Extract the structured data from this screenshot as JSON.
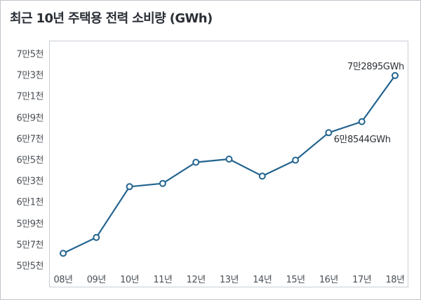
{
  "chart_data": {
    "type": "line",
    "title": "최근 10년 주택용 전력 소비량 (GWh)",
    "xlabel": "",
    "ylabel": "",
    "categories": [
      "08년",
      "09년",
      "10년",
      "11년",
      "12년",
      "13년",
      "14년",
      "15년",
      "16년",
      "17년",
      "18년"
    ],
    "series": [
      {
        "name": "주택용 전력 소비량",
        "values": [
          56100,
          57600,
          62400,
          62700,
          64700,
          65000,
          63400,
          64900,
          67500,
          68544,
          72895
        ]
      }
    ],
    "ylim": [
      55000,
      75000
    ],
    "yticks": [
      75000,
      73000,
      71000,
      69000,
      67000,
      65000,
      63000,
      61000,
      59000,
      57000,
      55000
    ],
    "ytick_labels": [
      "7만5천",
      "7만3천",
      "7만1천",
      "6만9천",
      "6만7천",
      "6만5천",
      "6만3천",
      "6만1천",
      "5만9천",
      "5만7천",
      "5만5천"
    ],
    "annotations": [
      {
        "text": "7만2895GWh",
        "category": "18년"
      },
      {
        "text": "6만8544GWh",
        "category": "17년"
      }
    ],
    "colors": {
      "line": "#23648f",
      "marker_fill": "#ffffff"
    }
  }
}
